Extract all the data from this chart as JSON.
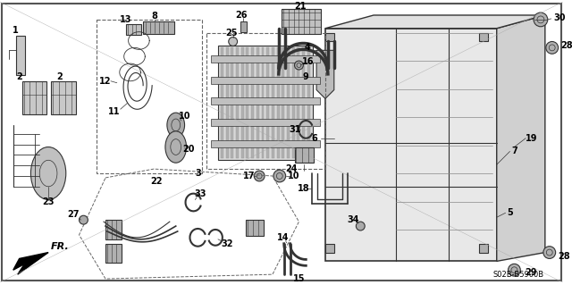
{
  "background_color": "#f0f0f0",
  "border_color": "#000000",
  "diagram_code": "S02B-B5900B",
  "fig_width": 6.4,
  "fig_height": 3.19,
  "dpi": 100,
  "label_size": 7,
  "text_color": "#000000",
  "line_color": "#333333",
  "gray_fill": "#c8c8c8",
  "light_gray": "#e8e8e8",
  "mid_gray": "#a0a0a0"
}
